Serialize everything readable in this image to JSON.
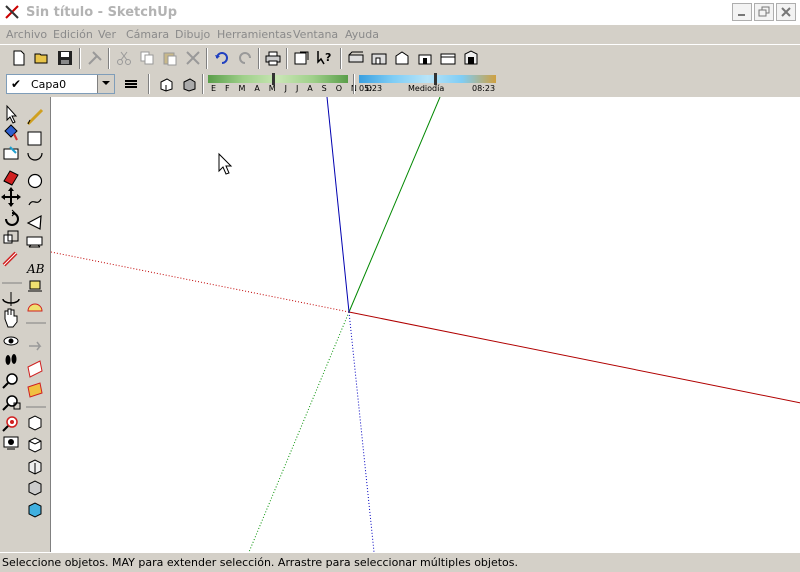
{
  "window": {
    "title": "Sin título - SketchUp"
  },
  "menu": {
    "items": [
      "Archivo",
      "Edición",
      "Ver",
      "Cámara",
      "Dibujo",
      "Herramientas",
      "Ventana",
      "Ayuda"
    ]
  },
  "layers": {
    "current": "Capa0"
  },
  "shadows": {
    "months": "E F M A M J J A S O N D",
    "time_start": "05:23",
    "time_mid": "Mediodía",
    "time_end": "08:23"
  },
  "status": {
    "text": "Seleccione objetos. MAY para extender selección. Arrastre para seleccionar múltiples objetos."
  },
  "colors": {
    "axis_red": "#b00000",
    "axis_green": "#008800",
    "axis_blue": "#0000b0"
  }
}
